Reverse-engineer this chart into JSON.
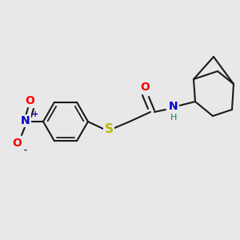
{
  "background_color": "#e8e8e8",
  "line_color": "#1a1a1a",
  "line_width": 1.5,
  "atom_colors": {
    "O": "#ff0000",
    "N_amide": "#0000cc",
    "H": "#008080",
    "S": "#b8b800",
    "N_nitro": "#0000cc",
    "O_nitro": "#ff0000",
    "plus": "#0000cc",
    "minus": "#1a1a1a"
  },
  "font_size_atom": 9,
  "font_size_small": 7,
  "figsize": [
    3.0,
    3.0
  ],
  "dpi": 100
}
